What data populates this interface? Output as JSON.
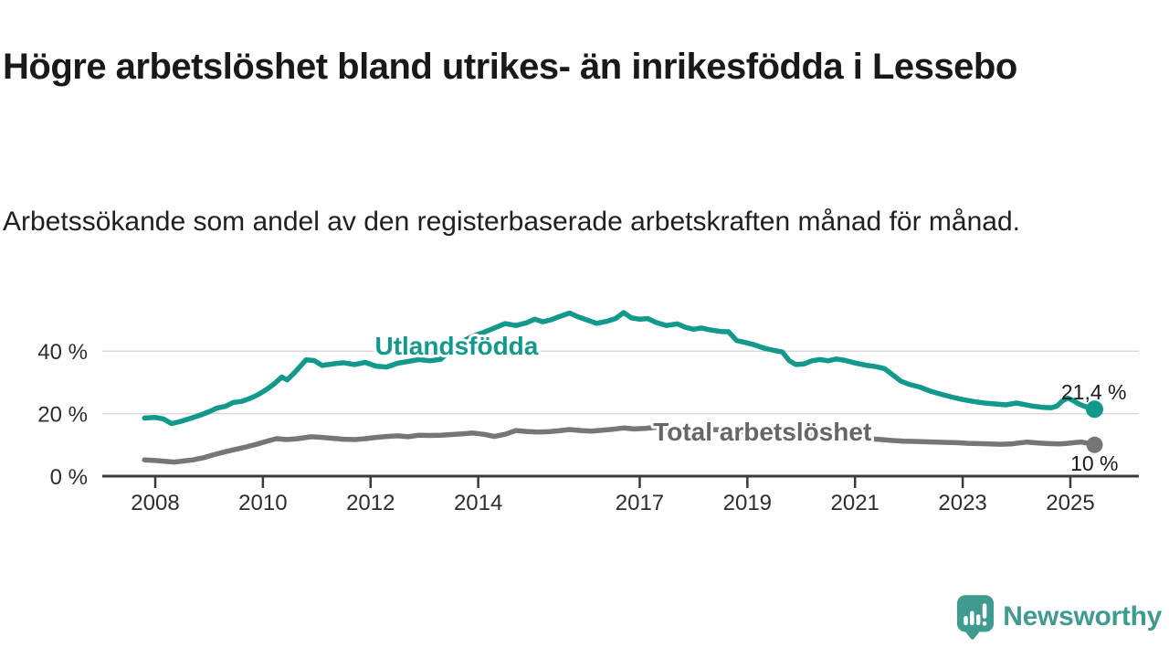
{
  "page": {
    "title": "Högre arbetslöshet bland utrikes- än inrikesfödda i Lessebo",
    "subtitle": "Arbetssökande som andel av den registerbaserade arbetskraften månad för månad."
  },
  "branding": {
    "name": "Newsworthy",
    "icon": "newsworthy-speech-bubble-bar-chart-icon",
    "color": "#3f9b8f"
  },
  "chart_data": {
    "type": "line",
    "title": "Högre arbetslöshet bland utrikes- än inrikesfödda i Lessebo",
    "subtitle": "Arbetssökande som andel av den registerbaserade arbetskraften månad för månad.",
    "unit": "%",
    "grid": "horizontal-only",
    "legend_position": "inline-labels-on-lines",
    "x_axis": {
      "range": [
        2007.7,
        2025.95
      ],
      "ticks": [
        2008,
        2010,
        2012,
        2014,
        2017,
        2019,
        2021,
        2023,
        2025
      ]
    },
    "y_axis": {
      "range": [
        0,
        58
      ],
      "ticks": [
        0,
        20,
        40
      ],
      "tick_labels": [
        "0 %",
        "20 %",
        "40 %"
      ],
      "gridlines": [
        20,
        40
      ]
    },
    "colors": {
      "axis": "#3a3a3a",
      "gridline": "#d8d8d8",
      "tick_text": "#2d2d2d",
      "end_label_text": "#1a1a1a"
    },
    "series": [
      {
        "name": "Utlandsfödda",
        "color": "#12998b",
        "label_color": "#12998b",
        "end_value": 21.4,
        "end_label": "21,4 %",
        "label_pos": {
          "year": 2012.08,
          "value": 38.9
        },
        "points": [
          [
            2007.8,
            18.6
          ],
          [
            2008.0,
            18.8
          ],
          [
            2008.15,
            18.3
          ],
          [
            2008.3,
            16.8
          ],
          [
            2008.45,
            17.4
          ],
          [
            2008.6,
            18.2
          ],
          [
            2008.8,
            19.3
          ],
          [
            2009.0,
            20.6
          ],
          [
            2009.15,
            21.8
          ],
          [
            2009.3,
            22.3
          ],
          [
            2009.45,
            23.6
          ],
          [
            2009.6,
            23.9
          ],
          [
            2009.75,
            24.8
          ],
          [
            2009.9,
            26.0
          ],
          [
            2010.05,
            27.5
          ],
          [
            2010.2,
            29.4
          ],
          [
            2010.35,
            31.7
          ],
          [
            2010.45,
            30.8
          ],
          [
            2010.6,
            33.3
          ],
          [
            2010.8,
            37.2
          ],
          [
            2010.95,
            37.0
          ],
          [
            2011.1,
            35.4
          ],
          [
            2011.3,
            35.9
          ],
          [
            2011.5,
            36.3
          ],
          [
            2011.7,
            35.7
          ],
          [
            2011.9,
            36.4
          ],
          [
            2012.1,
            35.2
          ],
          [
            2012.3,
            34.9
          ],
          [
            2012.5,
            36.1
          ],
          [
            2012.7,
            36.7
          ],
          [
            2012.9,
            37.3
          ],
          [
            2013.1,
            36.9
          ],
          [
            2013.3,
            37.4
          ],
          [
            2013.5,
            40.3
          ],
          [
            2013.7,
            43.0
          ],
          [
            2013.9,
            44.8
          ],
          [
            2014.1,
            46.0
          ],
          [
            2014.3,
            47.4
          ],
          [
            2014.5,
            48.8
          ],
          [
            2014.7,
            48.2
          ],
          [
            2014.9,
            49.1
          ],
          [
            2015.05,
            50.2
          ],
          [
            2015.2,
            49.4
          ],
          [
            2015.35,
            50.0
          ],
          [
            2015.5,
            51.0
          ],
          [
            2015.7,
            52.2
          ],
          [
            2015.85,
            51.0
          ],
          [
            2016.0,
            50.1
          ],
          [
            2016.2,
            48.9
          ],
          [
            2016.4,
            49.6
          ],
          [
            2016.55,
            50.4
          ],
          [
            2016.7,
            52.3
          ],
          [
            2016.85,
            50.6
          ],
          [
            2017.0,
            50.2
          ],
          [
            2017.15,
            50.4
          ],
          [
            2017.3,
            49.2
          ],
          [
            2017.5,
            48.2
          ],
          [
            2017.7,
            48.7
          ],
          [
            2017.85,
            47.6
          ],
          [
            2018.0,
            47.0
          ],
          [
            2018.15,
            47.4
          ],
          [
            2018.3,
            46.8
          ],
          [
            2018.5,
            46.3
          ],
          [
            2018.65,
            46.2
          ],
          [
            2018.8,
            43.4
          ],
          [
            2019.0,
            42.6
          ],
          [
            2019.15,
            41.9
          ],
          [
            2019.3,
            41.0
          ],
          [
            2019.5,
            40.2
          ],
          [
            2019.65,
            39.7
          ],
          [
            2019.78,
            36.9
          ],
          [
            2019.9,
            35.7
          ],
          [
            2020.05,
            35.9
          ],
          [
            2020.2,
            36.9
          ],
          [
            2020.35,
            37.3
          ],
          [
            2020.5,
            36.9
          ],
          [
            2020.65,
            37.5
          ],
          [
            2020.8,
            37.1
          ],
          [
            2021.0,
            36.2
          ],
          [
            2021.2,
            35.5
          ],
          [
            2021.4,
            35.0
          ],
          [
            2021.55,
            34.4
          ],
          [
            2021.7,
            32.4
          ],
          [
            2021.85,
            30.4
          ],
          [
            2022.0,
            29.4
          ],
          [
            2022.2,
            28.5
          ],
          [
            2022.4,
            27.2
          ],
          [
            2022.6,
            26.2
          ],
          [
            2022.8,
            25.3
          ],
          [
            2023.0,
            24.5
          ],
          [
            2023.2,
            23.9
          ],
          [
            2023.4,
            23.4
          ],
          [
            2023.6,
            23.1
          ],
          [
            2023.8,
            22.8
          ],
          [
            2024.0,
            23.4
          ],
          [
            2024.15,
            22.9
          ],
          [
            2024.3,
            22.4
          ],
          [
            2024.5,
            22.0
          ],
          [
            2024.65,
            21.9
          ],
          [
            2024.75,
            22.4
          ],
          [
            2024.85,
            24.0
          ],
          [
            2024.95,
            25.0
          ],
          [
            2025.05,
            24.2
          ],
          [
            2025.15,
            23.2
          ],
          [
            2025.25,
            22.4
          ],
          [
            2025.32,
            22.1
          ],
          [
            2025.38,
            21.6
          ],
          [
            2025.45,
            21.4
          ]
        ]
      },
      {
        "name": "Total arbetslöshet",
        "color": "#76767a",
        "label_color": "#666669",
        "end_value": 10,
        "end_label": "10 %",
        "label_pos": {
          "year": 2017.25,
          "value": 11.4
        },
        "points": [
          [
            2007.8,
            5.2
          ],
          [
            2008.0,
            5.0
          ],
          [
            2008.2,
            4.7
          ],
          [
            2008.35,
            4.5
          ],
          [
            2008.5,
            4.8
          ],
          [
            2008.7,
            5.2
          ],
          [
            2008.9,
            5.9
          ],
          [
            2009.1,
            6.9
          ],
          [
            2009.3,
            7.8
          ],
          [
            2009.5,
            8.6
          ],
          [
            2009.7,
            9.4
          ],
          [
            2009.9,
            10.3
          ],
          [
            2010.1,
            11.3
          ],
          [
            2010.25,
            12.0
          ],
          [
            2010.45,
            11.7
          ],
          [
            2010.65,
            12.0
          ],
          [
            2010.9,
            12.6
          ],
          [
            2011.1,
            12.4
          ],
          [
            2011.3,
            12.1
          ],
          [
            2011.5,
            11.8
          ],
          [
            2011.7,
            11.7
          ],
          [
            2011.9,
            12.0
          ],
          [
            2012.1,
            12.4
          ],
          [
            2012.3,
            12.7
          ],
          [
            2012.5,
            12.9
          ],
          [
            2012.7,
            12.6
          ],
          [
            2012.9,
            13.1
          ],
          [
            2013.1,
            13.0
          ],
          [
            2013.3,
            13.1
          ],
          [
            2013.5,
            13.3
          ],
          [
            2013.7,
            13.5
          ],
          [
            2013.9,
            13.8
          ],
          [
            2014.1,
            13.4
          ],
          [
            2014.3,
            12.7
          ],
          [
            2014.5,
            13.4
          ],
          [
            2014.7,
            14.6
          ],
          [
            2014.9,
            14.3
          ],
          [
            2015.1,
            14.1
          ],
          [
            2015.3,
            14.2
          ],
          [
            2015.5,
            14.5
          ],
          [
            2015.7,
            14.9
          ],
          [
            2015.9,
            14.6
          ],
          [
            2016.1,
            14.4
          ],
          [
            2016.3,
            14.7
          ],
          [
            2016.5,
            15.0
          ],
          [
            2016.7,
            15.4
          ],
          [
            2016.9,
            15.1
          ],
          [
            2017.1,
            15.3
          ],
          [
            2017.3,
            15.6
          ],
          [
            2017.5,
            15.3
          ],
          [
            2017.7,
            14.9
          ],
          [
            2017.9,
            14.6
          ],
          [
            2018.1,
            14.7
          ],
          [
            2018.3,
            14.9
          ],
          [
            2018.5,
            14.8
          ],
          [
            2018.7,
            14.5
          ],
          [
            2018.9,
            14.2
          ],
          [
            2019.1,
            13.9
          ],
          [
            2019.3,
            13.6
          ],
          [
            2019.5,
            13.4
          ],
          [
            2019.7,
            13.3
          ],
          [
            2019.9,
            13.2
          ],
          [
            2020.1,
            13.1
          ],
          [
            2020.3,
            13.0
          ],
          [
            2020.5,
            12.8
          ],
          [
            2020.7,
            12.6
          ],
          [
            2020.9,
            12.4
          ],
          [
            2021.1,
            12.1
          ],
          [
            2021.3,
            11.9
          ],
          [
            2021.5,
            11.7
          ],
          [
            2021.7,
            11.4
          ],
          [
            2021.9,
            11.2
          ],
          [
            2022.1,
            11.1
          ],
          [
            2022.3,
            11.0
          ],
          [
            2022.5,
            10.9
          ],
          [
            2022.7,
            10.8
          ],
          [
            2022.9,
            10.7
          ],
          [
            2023.1,
            10.5
          ],
          [
            2023.3,
            10.4
          ],
          [
            2023.5,
            10.3
          ],
          [
            2023.7,
            10.2
          ],
          [
            2023.9,
            10.3
          ],
          [
            2024.05,
            10.6
          ],
          [
            2024.2,
            10.9
          ],
          [
            2024.4,
            10.6
          ],
          [
            2024.6,
            10.4
          ],
          [
            2024.8,
            10.3
          ],
          [
            2024.95,
            10.5
          ],
          [
            2025.1,
            10.8
          ],
          [
            2025.2,
            10.9
          ],
          [
            2025.3,
            10.6
          ],
          [
            2025.38,
            10.3
          ],
          [
            2025.45,
            10.0
          ]
        ]
      }
    ]
  }
}
